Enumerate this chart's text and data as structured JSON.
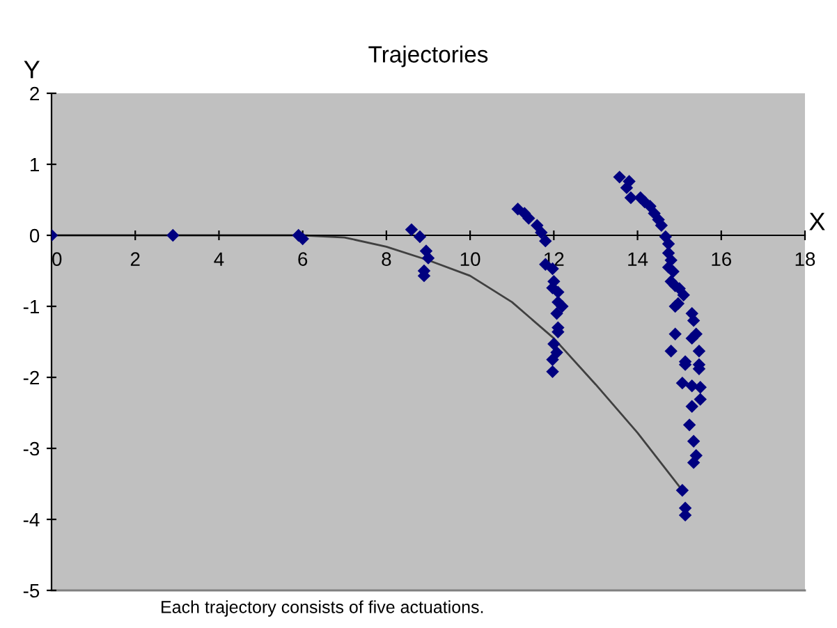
{
  "chart_data": {
    "type": "scatter",
    "title": "Trajectories",
    "xlabel": "X",
    "ylabel": "Y",
    "xlim": [
      0,
      18
    ],
    "xticks": [
      0,
      2,
      4,
      6,
      8,
      10,
      12,
      14,
      16,
      18
    ],
    "ylim": [
      -5,
      2
    ],
    "yticks": [
      -5,
      -4,
      -3,
      -2,
      -1,
      0,
      1,
      2
    ],
    "grid": false,
    "legend": false,
    "annotations": [
      "Each trajectory consists of five actuations."
    ],
    "series": [
      {
        "color": "#000080",
        "marker": "diamond",
        "x": [
          0,
          2.9,
          5.9,
          6.0,
          8.6,
          8.8,
          8.95,
          9.0,
          8.9,
          8.9,
          11.14,
          11.3,
          11.4,
          11.6,
          11.7,
          11.8,
          11.8,
          11.97,
          12.0,
          11.97,
          12.1,
          12.1,
          12.2,
          12.07,
          12.1,
          12.1,
          12.0,
          12.07,
          11.97,
          11.97,
          13.57,
          13.8,
          13.74,
          13.84,
          14.07,
          14.17,
          14.3,
          14.4,
          14.5,
          14.57,
          14.67,
          14.74,
          14.74,
          14.8,
          14.74,
          14.85,
          14.8,
          14.9,
          15.0,
          15.1,
          14.97,
          14.9,
          15.3,
          15.34,
          14.9,
          15.4,
          15.3,
          14.8,
          15.47,
          15.14,
          15.47,
          15.14,
          15.47,
          15.07,
          15.3,
          15.5,
          15.5,
          15.3,
          15.24,
          15.34,
          15.4,
          15.34,
          15.07,
          15.14,
          15.14
        ],
        "values": [
          0,
          0,
          0,
          -0.05,
          0.08,
          -0.02,
          -0.22,
          -0.32,
          -0.5,
          -0.57,
          0.37,
          0.31,
          0.24,
          0.14,
          0.04,
          -0.08,
          -0.41,
          -0.47,
          -0.65,
          -0.74,
          -0.8,
          -0.94,
          -1.0,
          -1.1,
          -1.3,
          -1.36,
          -1.53,
          -1.65,
          -1.75,
          -1.92,
          0.82,
          0.76,
          0.67,
          0.53,
          0.53,
          0.47,
          0.41,
          0.31,
          0.22,
          0.14,
          -0.02,
          -0.12,
          -0.25,
          -0.35,
          -0.45,
          -0.51,
          -0.65,
          -0.71,
          -0.75,
          -0.84,
          -0.96,
          -1.0,
          -1.1,
          -1.2,
          -1.39,
          -1.39,
          -1.45,
          -1.63,
          -1.63,
          -1.78,
          -1.82,
          -1.82,
          -1.88,
          -2.08,
          -2.12,
          -2.14,
          -2.31,
          -2.41,
          -2.67,
          -2.9,
          -3.1,
          -3.2,
          -3.59,
          -3.84,
          -3.94
        ]
      },
      {
        "type": "line",
        "color": "#404040",
        "line_style": "solid",
        "marker": "none",
        "x": [
          0,
          4,
          6,
          7,
          8,
          9,
          10,
          11,
          12,
          13,
          14,
          15.07
        ],
        "values": [
          0,
          0,
          0,
          -0.03,
          -0.16,
          -0.35,
          -0.57,
          -0.94,
          -1.45,
          -2.1,
          -2.78,
          -3.59
        ]
      }
    ]
  }
}
